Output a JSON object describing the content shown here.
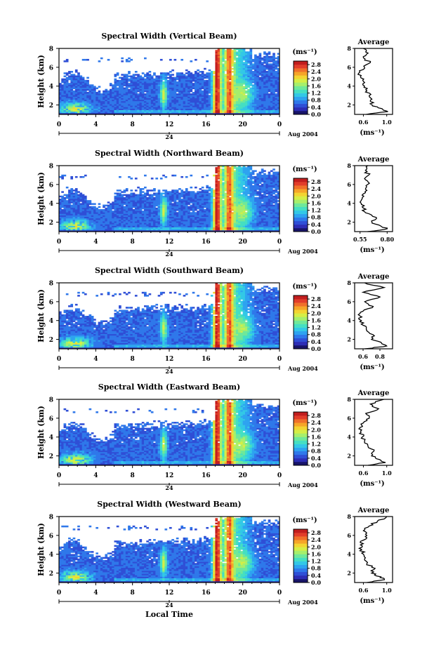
{
  "colors": {
    "colormap": [
      "#181468",
      "#2d2db4",
      "#2f4fd6",
      "#2f78ea",
      "#2ea3f0",
      "#33c8e6",
      "#45dfc2",
      "#6fe89a",
      "#a6ef6c",
      "#d5ee46",
      "#f3d431",
      "#f6a528",
      "#f0702a",
      "#e23d2a",
      "#c21e1e"
    ],
    "no_data": "#ffffff"
  },
  "chart_data": [
    {
      "type": "heatmap",
      "title": "Spectral Width (Vertical Beam)",
      "ylabel": "Height (km)",
      "yticks": [
        "2",
        "4",
        "6",
        "8"
      ],
      "ylim": [
        1,
        8
      ],
      "xticks": [
        "0",
        "4",
        "8",
        "12",
        "16",
        "20",
        "0"
      ],
      "xlim": [
        0,
        24
      ],
      "date_ticks": [
        "24"
      ],
      "date_suffix": "Aug 2004",
      "colorbar": {
        "label": "(ms⁻¹)",
        "ticks": [
          "0.0",
          "0.4",
          "0.8",
          "1.2",
          "1.6",
          "2.0",
          "2.4",
          "2.8"
        ],
        "range": [
          0,
          3.0
        ]
      },
      "average_profile": {
        "title": "Average",
        "xlabel": "(ms⁻¹)",
        "xticks": [
          "0.6",
          "1.0"
        ],
        "xlim": [
          0.45,
          1.1
        ],
        "yticks": [
          "2",
          "4",
          "6",
          "8"
        ],
        "height_km": [
          1.0,
          1.3,
          1.6,
          2.0,
          2.5,
          3.0,
          3.5,
          4.0,
          4.5,
          5.0,
          5.5,
          6.0,
          6.5,
          7.0,
          7.5,
          8.0
        ],
        "width": [
          0.65,
          1.02,
          0.92,
          0.75,
          0.72,
          0.7,
          0.66,
          0.62,
          0.6,
          0.55,
          0.54,
          0.62,
          0.72,
          0.6,
          0.68,
          0.6
        ]
      }
    },
    {
      "type": "heatmap",
      "title": "Spectral Width (Northward Beam)",
      "ylabel": "Height (km)",
      "yticks": [
        "2",
        "4",
        "6",
        "8"
      ],
      "ylim": [
        1,
        8
      ],
      "xticks": [
        "0",
        "4",
        "8",
        "12",
        "16",
        "20",
        "0"
      ],
      "xlim": [
        0,
        24
      ],
      "date_ticks": [
        "24"
      ],
      "date_suffix": "Aug 2004",
      "colorbar": {
        "label": "(ms⁻¹)",
        "ticks": [
          "0.0",
          "0.4",
          "0.8",
          "1.2",
          "1.6",
          "2.0",
          "2.4",
          "2.8"
        ],
        "range": [
          0,
          3.0
        ]
      },
      "average_profile": {
        "title": "Average",
        "xlabel": "(ms⁻¹)",
        "xticks": [
          "0.55",
          "0.80"
        ],
        "xlim": [
          0.5,
          0.85
        ],
        "yticks": [
          "2",
          "4",
          "6",
          "8"
        ],
        "height_km": [
          1.0,
          1.3,
          1.6,
          2.0,
          2.5,
          3.0,
          3.5,
          4.0,
          4.5,
          5.0,
          5.5,
          6.0,
          6.5,
          7.0,
          7.5,
          8.0
        ],
        "width": [
          0.62,
          0.8,
          0.74,
          0.66,
          0.7,
          0.6,
          0.58,
          0.56,
          0.57,
          0.58,
          0.6,
          0.62,
          0.6,
          0.63,
          0.6,
          0.62
        ]
      }
    },
    {
      "type": "heatmap",
      "title": "Spectral Width (Southward Beam)",
      "ylabel": "Height (km)",
      "yticks": [
        "2",
        "4",
        "6",
        "8"
      ],
      "ylim": [
        1,
        8
      ],
      "xticks": [
        "0",
        "4",
        "8",
        "12",
        "16",
        "20",
        "0"
      ],
      "xlim": [
        0,
        24
      ],
      "date_ticks": [
        "24"
      ],
      "date_suffix": "Aug 2004",
      "colorbar": {
        "label": "(ms⁻¹)",
        "ticks": [
          "0.0",
          "0.4",
          "0.8",
          "1.2",
          "1.6",
          "2.0",
          "2.4",
          "2.8"
        ],
        "range": [
          0,
          3.0
        ]
      },
      "average_profile": {
        "title": "Average",
        "xlabel": "(ms⁻¹)",
        "xticks": [
          "0.6",
          "0.8"
        ],
        "xlim": [
          0.5,
          0.95
        ],
        "yticks": [
          "2",
          "4",
          "6",
          "8"
        ],
        "height_km": [
          1.0,
          1.3,
          1.6,
          2.0,
          2.5,
          3.0,
          3.5,
          4.0,
          4.5,
          5.0,
          5.5,
          6.0,
          6.5,
          7.0,
          7.5,
          8.0
        ],
        "width": [
          0.62,
          0.88,
          0.82,
          0.7,
          0.72,
          0.64,
          0.6,
          0.58,
          0.56,
          0.6,
          0.72,
          0.62,
          0.8,
          0.6,
          0.85,
          0.62
        ]
      }
    },
    {
      "type": "heatmap",
      "title": "Spectral Width (Eastward Beam)",
      "ylabel": "Height (km)",
      "yticks": [
        "2",
        "4",
        "6",
        "8"
      ],
      "ylim": [
        1,
        8
      ],
      "xticks": [
        "0",
        "4",
        "8",
        "12",
        "16",
        "20",
        "0"
      ],
      "xlim": [
        0,
        24
      ],
      "date_ticks": [
        "24"
      ],
      "date_suffix": "Aug 2004",
      "colorbar": {
        "label": "(ms⁻¹)",
        "ticks": [
          "0.0",
          "0.4",
          "0.8",
          "1.2",
          "1.6",
          "2.0",
          "2.4",
          "2.8"
        ],
        "range": [
          0,
          3.0
        ]
      },
      "average_profile": {
        "title": "Average",
        "xlabel": "(ms⁻¹)",
        "xticks": [
          "0.6",
          "1.0"
        ],
        "xlim": [
          0.45,
          1.1
        ],
        "yticks": [
          "2",
          "4",
          "6",
          "8"
        ],
        "height_km": [
          1.0,
          1.3,
          1.6,
          2.0,
          2.5,
          3.0,
          3.5,
          4.0,
          4.5,
          5.0,
          5.5,
          6.0,
          6.5,
          7.0,
          7.5,
          8.0
        ],
        "width": [
          0.68,
          0.98,
          0.88,
          0.74,
          0.78,
          0.68,
          0.62,
          0.58,
          0.56,
          0.54,
          0.6,
          0.7,
          0.64,
          0.86,
          0.72,
          0.95
        ]
      }
    },
    {
      "type": "heatmap",
      "title": "Spectral Width (Westward Beam)",
      "ylabel": "Height (km)",
      "yticks": [
        "2",
        "4",
        "6",
        "8"
      ],
      "ylim": [
        1,
        8
      ],
      "xticks": [
        "0",
        "4",
        "8",
        "12",
        "16",
        "20",
        "0"
      ],
      "xlim": [
        0,
        24
      ],
      "date_ticks": [
        "24"
      ],
      "date_suffix": "Aug 2004",
      "xlabel": "Local Time",
      "colorbar": {
        "label": "(ms⁻¹)",
        "ticks": [
          "0.0",
          "0.4",
          "0.8",
          "1.2",
          "1.6",
          "2.0",
          "2.4",
          "2.8"
        ],
        "range": [
          0,
          3.0
        ]
      },
      "average_profile": {
        "title": "Average",
        "xlabel": "(ms⁻¹)",
        "xticks": [
          "0.6",
          "1.0"
        ],
        "xlim": [
          0.45,
          1.1
        ],
        "yticks": [
          "2",
          "4",
          "6",
          "8"
        ],
        "height_km": [
          1.0,
          1.3,
          1.6,
          2.0,
          2.5,
          3.0,
          3.5,
          4.0,
          4.5,
          5.0,
          5.5,
          6.0,
          6.5,
          7.0,
          7.5,
          8.0
        ],
        "width": [
          0.66,
          0.96,
          0.9,
          0.74,
          0.8,
          0.66,
          0.62,
          0.6,
          0.57,
          0.55,
          0.6,
          0.66,
          0.6,
          0.7,
          0.84,
          1.0
        ]
      }
    }
  ]
}
